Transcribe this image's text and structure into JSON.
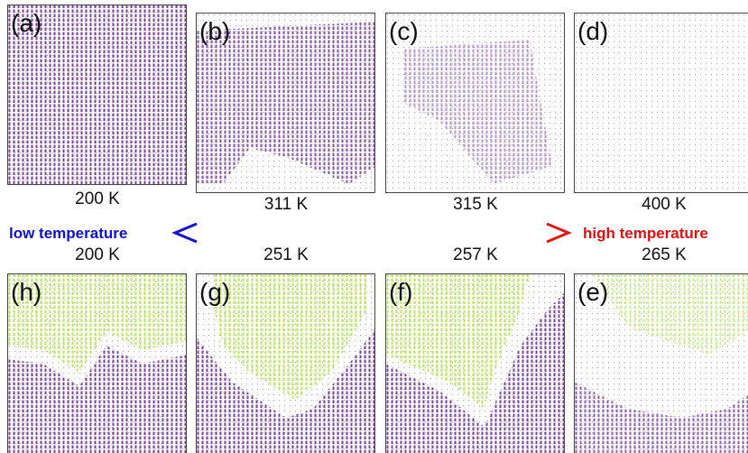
{
  "top_panels": [
    {
      "label": "(a)",
      "temperature": "200 K"
    },
    {
      "label": "(b)",
      "temperature": "311 K"
    },
    {
      "label": "(c)",
      "temperature": "315 K"
    },
    {
      "label": "(d)",
      "temperature": "400 K"
    }
  ],
  "bottom_panels": [
    {
      "label": "(h)",
      "temperature": "200 K"
    },
    {
      "label": "(g)",
      "temperature": "251 K"
    },
    {
      "label": "(f)",
      "temperature": "257 K"
    },
    {
      "label": "(e)",
      "temperature": "265 K"
    }
  ],
  "arrow": {
    "left_label": "low temperature",
    "right_label": "high temperature"
  }
}
